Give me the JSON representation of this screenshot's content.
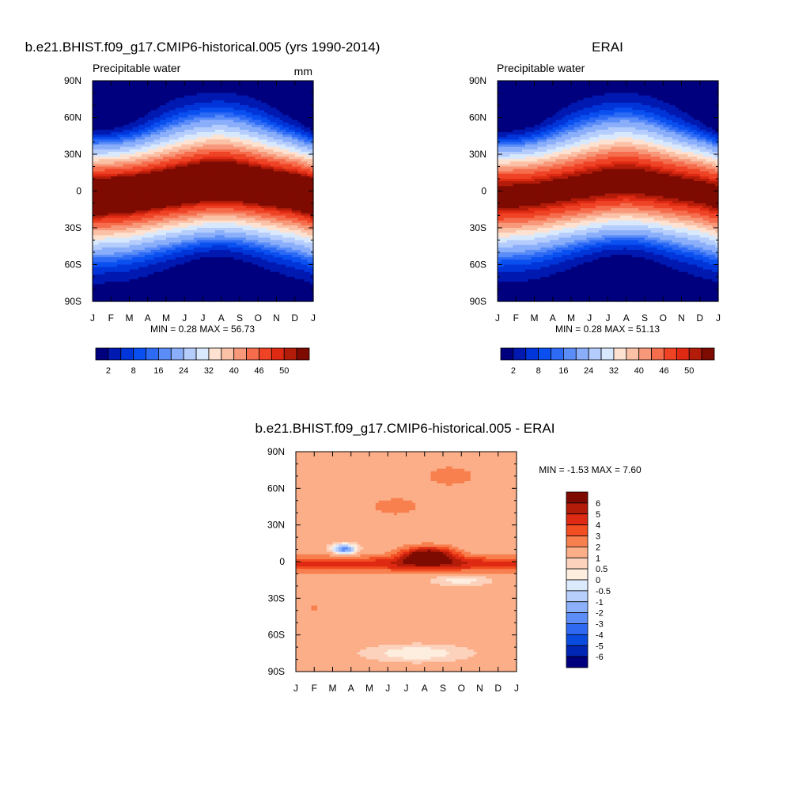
{
  "chart_data": [
    {
      "type": "heatmap",
      "title": "b.e21.BHIST.f09_g17.CMIP6-historical.005 (yrs 1990-2014)",
      "subtitle_left": "Precipitable water",
      "units": "mm",
      "stats": "MIN =   0.28 MAX =  56.73",
      "x_ticks": [
        "J",
        "F",
        "M",
        "A",
        "M",
        "J",
        "J",
        "A",
        "S",
        "O",
        "N",
        "D",
        "J"
      ],
      "y_ticks": [
        "90N",
        "60N",
        "30N",
        "0",
        "30S",
        "60S",
        "90S"
      ],
      "ylim": [
        -90,
        90
      ],
      "max_value": 56.73,
      "equator_peak_lat": [
        -4,
        -3,
        -2,
        0,
        2,
        4,
        6,
        7,
        6,
        4,
        2,
        0
      ],
      "colorbar": {
        "levels": [
          2,
          4,
          6,
          8,
          10,
          12,
          16,
          20,
          24,
          28,
          32,
          36,
          40,
          44,
          46,
          48,
          50
        ],
        "labels": [
          "2",
          "8",
          "16",
          "24",
          "32",
          "40",
          "46",
          "50"
        ],
        "colors": [
          "#00007e",
          "#0019b0",
          "#0035d9",
          "#0a50f0",
          "#2e6bf5",
          "#5a8df8",
          "#8aaefa",
          "#b5cdfc",
          "#d9e9fd",
          "#fde2d2",
          "#fbc1a6",
          "#f8987a",
          "#f56d4d",
          "#ef4326",
          "#de2a12",
          "#b41c0a",
          "#7e0b02"
        ]
      }
    },
    {
      "type": "heatmap",
      "title": "ERAI",
      "subtitle_left": "Precipitable water",
      "stats": "MIN =   0.28 MAX =  51.13",
      "x_ticks": [
        "J",
        "F",
        "M",
        "A",
        "M",
        "J",
        "J",
        "A",
        "S",
        "O",
        "N",
        "D",
        "J"
      ],
      "y_ticks": [
        "90N",
        "60N",
        "30N",
        "0",
        "30S",
        "60S",
        "90S"
      ],
      "ylim": [
        -90,
        90
      ],
      "max_value": 51.13,
      "equator_peak_lat": [
        -4,
        -3,
        -2,
        0,
        2,
        4,
        6,
        7,
        6,
        4,
        2,
        0
      ],
      "colorbar": {
        "labels": [
          "2",
          "8",
          "16",
          "24",
          "32",
          "40",
          "46",
          "50"
        ]
      }
    },
    {
      "type": "heatmap",
      "title": "b.e21.BHIST.f09_g17.CMIP6-historical.005 - ERAI",
      "stats": "MIN =  -1.53 MAX =   7.60",
      "x_ticks": [
        "J",
        "F",
        "M",
        "A",
        "M",
        "J",
        "J",
        "A",
        "S",
        "O",
        "N",
        "D",
        "J"
      ],
      "y_ticks": [
        "90N",
        "60N",
        "30N",
        "0",
        "30S",
        "60S",
        "90S"
      ],
      "ylim": [
        -90,
        90
      ],
      "colorbar": {
        "labels": [
          "6",
          "5",
          "4",
          "3",
          "2",
          "1",
          "0.5",
          "0",
          "-0.5",
          "-1",
          "-2",
          "-3",
          "-4",
          "-5",
          "-6"
        ],
        "colors": [
          "#7e0b02",
          "#b41c0a",
          "#de2a12",
          "#f24e22",
          "#f8804f",
          "#fbae88",
          "#fdd2bc",
          "#fdeee0",
          "#dbeafd",
          "#b7cffb",
          "#8cb0f9",
          "#5d8ef7",
          "#2f69f2",
          "#0a4bdf",
          "#0026b5",
          "#00007e"
        ]
      }
    }
  ]
}
